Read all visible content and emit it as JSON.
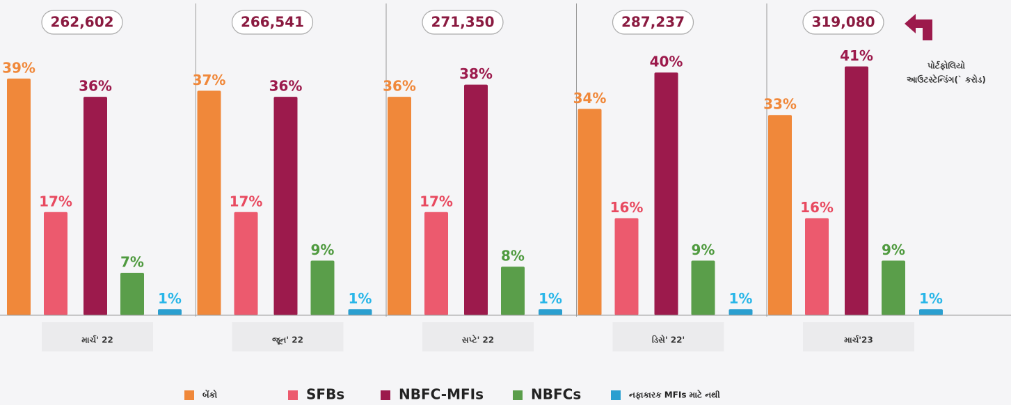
{
  "chart_data": {
    "type": "bar",
    "categories": [
      "માર્ચ' 22",
      "જૂન' 22",
      "સપ્ટે' 22",
      "ડિસે' 22'",
      "માર્ચ'23"
    ],
    "totals": {
      "values": [
        262602,
        266541,
        271350,
        287237,
        319080
      ],
      "value_labels": [
        "262,602",
        "266,541",
        "271,350",
        "287,237",
        "319,080"
      ]
    },
    "annotation": [
      "પોર્ટફોલિયો",
      "આઉટસ્ટેન્ડિંગ(` કરોડ)"
    ],
    "series": [
      {
        "name": "બેંકો",
        "color": "#f0883a",
        "values": [
          39,
          37,
          36,
          34,
          33
        ],
        "value_labels": [
          "39%",
          "37%",
          "36%",
          "34%",
          "33%"
        ]
      },
      {
        "name": "SFBs",
        "color": "#ec5a6e",
        "values": [
          17,
          17,
          17,
          16,
          16
        ],
        "value_labels": [
          "17%",
          "17%",
          "17%",
          "16%",
          "16%"
        ]
      },
      {
        "name": "NBFC-MFIs",
        "color": "#9c1a4c",
        "values": [
          36,
          36,
          38,
          40,
          41
        ],
        "value_labels": [
          "36%",
          "36%",
          "38%",
          "40%",
          "41%"
        ]
      },
      {
        "name": "NBFCs",
        "color": "#5a9e4a",
        "values": [
          7,
          9,
          8,
          9,
          9
        ],
        "value_labels": [
          "7%",
          "9%",
          "8%",
          "9%",
          "9%"
        ]
      },
      {
        "name": "નફાકારક MFIs માટે નથી",
        "color": "#2a9fd0",
        "values": [
          1,
          1,
          1,
          1,
          1
        ],
        "value_labels": [
          "1%",
          "1%",
          "1%",
          "1%",
          "1%"
        ]
      }
    ]
  }
}
